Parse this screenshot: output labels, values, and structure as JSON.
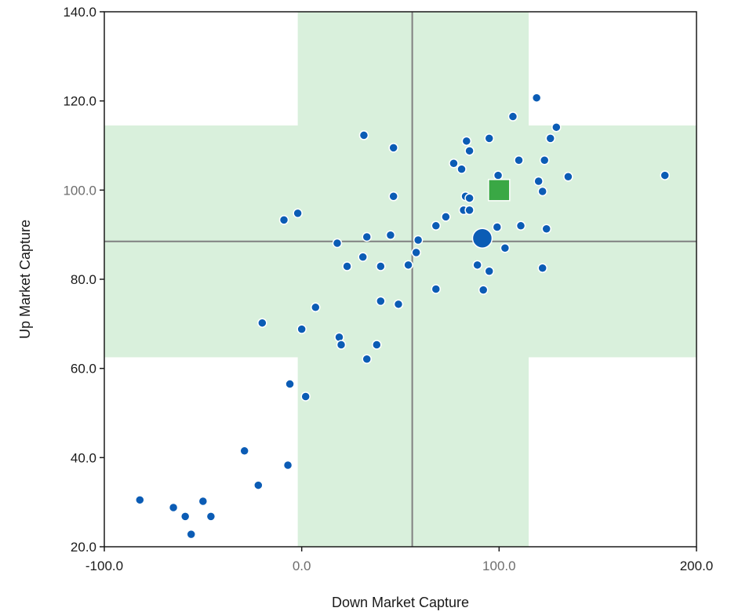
{
  "chart_data": {
    "type": "scatter",
    "xlabel": "Down Market Capture",
    "ylabel": "Up Market Capture",
    "xlim": [
      -100,
      200
    ],
    "ylim": [
      20,
      140
    ],
    "x_ticks": [
      {
        "value": -100,
        "label": "-100.0"
      },
      {
        "value": 0,
        "label": "0.0"
      },
      {
        "value": 100,
        "label": "100.0"
      },
      {
        "value": 200,
        "label": "200.0"
      }
    ],
    "y_ticks": [
      {
        "value": 20,
        "label": "20.0"
      },
      {
        "value": 40,
        "label": "40.0"
      },
      {
        "value": 60,
        "label": "60.0"
      },
      {
        "value": 80,
        "label": "80.0"
      },
      {
        "value": 100,
        "label": "100.0"
      },
      {
        "value": 120,
        "label": "120.0"
      },
      {
        "value": 140,
        "label": "140.0"
      }
    ],
    "shaded_bands": {
      "color": "#d9f0dc",
      "vertical_x_range": [
        -2,
        115
      ],
      "horizontal_y_range": [
        62.5,
        114.5
      ]
    },
    "reference_lines": {
      "color": "#808080",
      "x": 56,
      "y": 88.5
    },
    "point_color": "#0b5cb5",
    "points": [
      [
        -82,
        30.5
      ],
      [
        -65,
        28.8
      ],
      [
        -59,
        26.8
      ],
      [
        -56,
        22.8
      ],
      [
        -50,
        30.2
      ],
      [
        -46,
        26.8
      ],
      [
        -29,
        41.5
      ],
      [
        -22,
        33.8
      ],
      [
        -20,
        70.2
      ],
      [
        -9,
        93.3
      ],
      [
        -7,
        38.3
      ],
      [
        -6,
        56.5
      ],
      [
        -2,
        94.8
      ],
      [
        0,
        68.8
      ],
      [
        2,
        53.7
      ],
      [
        7,
        73.7
      ],
      [
        18,
        88.1
      ],
      [
        19,
        67
      ],
      [
        20,
        65.3
      ],
      [
        23,
        82.9
      ],
      [
        31,
        85
      ],
      [
        31.5,
        112.3
      ],
      [
        33,
        62.1
      ],
      [
        33,
        89.5
      ],
      [
        38,
        65.3
      ],
      [
        40,
        75.1
      ],
      [
        40,
        82.9
      ],
      [
        45,
        89.9
      ],
      [
        46.5,
        109.5
      ],
      [
        46.5,
        98.6
      ],
      [
        49,
        74.4
      ],
      [
        54,
        83.2
      ],
      [
        58,
        86
      ],
      [
        59,
        88.8
      ],
      [
        68,
        77.8
      ],
      [
        68,
        92
      ],
      [
        73,
        94
      ],
      [
        77,
        106
      ],
      [
        81,
        104.7
      ],
      [
        82,
        95.5
      ],
      [
        83,
        98.6
      ],
      [
        83.5,
        111
      ],
      [
        85,
        98.2
      ],
      [
        85,
        108.8
      ],
      [
        85,
        95.5
      ],
      [
        89,
        83.2
      ],
      [
        92,
        77.6
      ],
      [
        95,
        111.6
      ],
      [
        95,
        81.8
      ],
      [
        99,
        91.7
      ],
      [
        99.5,
        103.3
      ],
      [
        103,
        87
      ],
      [
        107,
        116.5
      ],
      [
        110,
        106.7
      ],
      [
        111,
        92
      ],
      [
        119,
        120.7
      ],
      [
        120,
        102
      ],
      [
        122,
        99.7
      ],
      [
        122,
        82.5
      ],
      [
        123,
        106.7
      ],
      [
        124,
        91.3
      ],
      [
        126,
        111.6
      ],
      [
        129,
        114.1
      ],
      [
        135,
        103
      ],
      [
        184,
        103.3
      ]
    ],
    "highlight_point": {
      "x": 91.5,
      "y": 89.2,
      "color": "#0b5cb5",
      "shape": "circle"
    },
    "benchmark_point": {
      "x": 100,
      "y": 100,
      "color": "#3aa845",
      "shape": "square"
    }
  }
}
